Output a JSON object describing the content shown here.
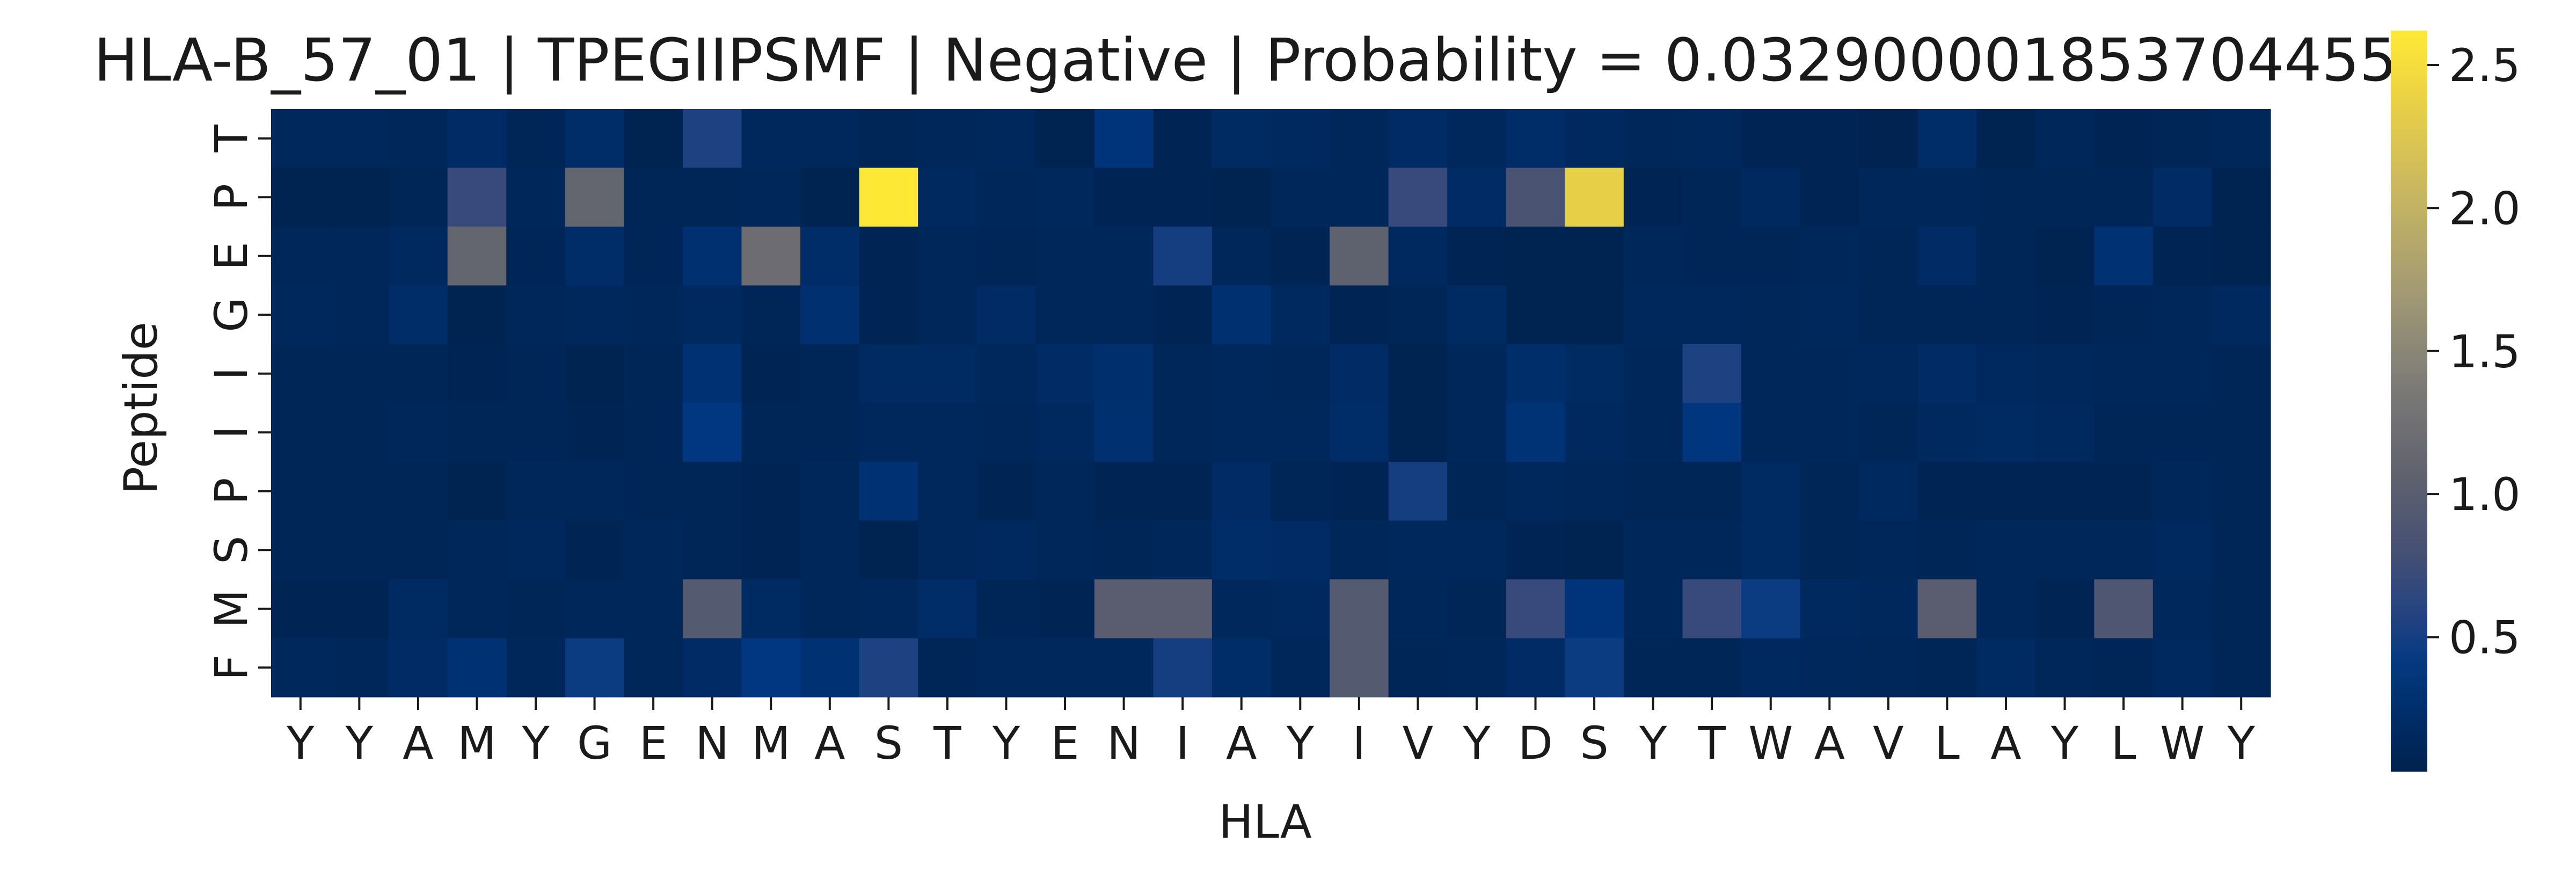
{
  "chart_data": {
    "type": "heatmap",
    "title": "HLA-B_57_01 | TPEGIIPSMF | Negative | Probability = 0.032900001853704455",
    "xlabel": "HLA",
    "ylabel": "Peptide",
    "x_categories": [
      "Y",
      "Y",
      "A",
      "M",
      "Y",
      "G",
      "E",
      "N",
      "M",
      "A",
      "S",
      "T",
      "Y",
      "E",
      "N",
      "I",
      "A",
      "Y",
      "I",
      "V",
      "Y",
      "D",
      "S",
      "Y",
      "T",
      "W",
      "A",
      "V",
      "L",
      "A",
      "Y",
      "L",
      "W",
      "Y"
    ],
    "y_categories": [
      "T",
      "P",
      "E",
      "G",
      "I",
      "I",
      "P",
      "S",
      "M",
      "F"
    ],
    "colormap": "cividis",
    "vmin": 0.03,
    "vmax": 2.62,
    "colorbar_ticks": [
      0.5,
      1.0,
      1.5,
      2.0,
      2.5
    ],
    "colorbar_tick_labels": [
      "0.5",
      "1.0",
      "1.5",
      "2.0",
      "2.5"
    ],
    "values": [
      [
        0.14,
        0.14,
        0.12,
        0.2,
        0.1,
        0.22,
        0.06,
        0.55,
        0.14,
        0.14,
        0.1,
        0.12,
        0.14,
        0.06,
        0.35,
        0.08,
        0.18,
        0.16,
        0.12,
        0.2,
        0.14,
        0.22,
        0.16,
        0.12,
        0.14,
        0.08,
        0.08,
        0.05,
        0.22,
        0.06,
        0.12,
        0.08,
        0.1,
        0.12
      ],
      [
        0.06,
        0.06,
        0.1,
        0.7,
        0.12,
        1.1,
        0.1,
        0.1,
        0.12,
        0.06,
        2.62,
        0.16,
        0.12,
        0.14,
        0.08,
        0.08,
        0.06,
        0.12,
        0.12,
        0.7,
        0.2,
        0.85,
        2.35,
        0.08,
        0.1,
        0.16,
        0.08,
        0.12,
        0.12,
        0.1,
        0.1,
        0.1,
        0.2,
        0.06
      ],
      [
        0.12,
        0.12,
        0.16,
        1.1,
        0.1,
        0.22,
        0.1,
        0.28,
        1.2,
        0.22,
        0.08,
        0.12,
        0.1,
        0.12,
        0.12,
        0.5,
        0.12,
        0.08,
        1.05,
        0.16,
        0.08,
        0.06,
        0.06,
        0.12,
        0.1,
        0.1,
        0.12,
        0.1,
        0.2,
        0.1,
        0.06,
        0.3,
        0.08,
        0.06
      ],
      [
        0.14,
        0.12,
        0.22,
        0.06,
        0.12,
        0.14,
        0.12,
        0.16,
        0.1,
        0.28,
        0.08,
        0.12,
        0.2,
        0.12,
        0.12,
        0.08,
        0.28,
        0.16,
        0.08,
        0.1,
        0.18,
        0.06,
        0.06,
        0.14,
        0.14,
        0.12,
        0.14,
        0.1,
        0.1,
        0.1,
        0.08,
        0.1,
        0.12,
        0.16
      ],
      [
        0.1,
        0.1,
        0.1,
        0.08,
        0.1,
        0.06,
        0.1,
        0.3,
        0.08,
        0.1,
        0.18,
        0.18,
        0.14,
        0.2,
        0.26,
        0.12,
        0.14,
        0.12,
        0.2,
        0.06,
        0.12,
        0.24,
        0.18,
        0.12,
        0.55,
        0.12,
        0.12,
        0.14,
        0.2,
        0.16,
        0.14,
        0.12,
        0.12,
        0.1
      ],
      [
        0.1,
        0.1,
        0.12,
        0.1,
        0.1,
        0.08,
        0.1,
        0.4,
        0.1,
        0.1,
        0.14,
        0.14,
        0.12,
        0.16,
        0.28,
        0.12,
        0.14,
        0.14,
        0.22,
        0.06,
        0.12,
        0.32,
        0.16,
        0.12,
        0.38,
        0.12,
        0.12,
        0.1,
        0.16,
        0.18,
        0.16,
        0.1,
        0.1,
        0.1
      ],
      [
        0.1,
        0.1,
        0.1,
        0.06,
        0.12,
        0.12,
        0.1,
        0.1,
        0.08,
        0.12,
        0.3,
        0.14,
        0.08,
        0.12,
        0.08,
        0.08,
        0.2,
        0.1,
        0.08,
        0.5,
        0.1,
        0.14,
        0.12,
        0.1,
        0.1,
        0.18,
        0.1,
        0.16,
        0.08,
        0.08,
        0.08,
        0.08,
        0.12,
        0.1
      ],
      [
        0.1,
        0.1,
        0.1,
        0.12,
        0.14,
        0.08,
        0.12,
        0.1,
        0.08,
        0.12,
        0.06,
        0.14,
        0.16,
        0.12,
        0.1,
        0.12,
        0.22,
        0.2,
        0.12,
        0.14,
        0.14,
        0.08,
        0.06,
        0.12,
        0.12,
        0.18,
        0.1,
        0.12,
        0.1,
        0.12,
        0.12,
        0.12,
        0.16,
        0.1
      ],
      [
        0.08,
        0.08,
        0.18,
        0.12,
        0.1,
        0.12,
        0.12,
        0.95,
        0.18,
        0.12,
        0.14,
        0.22,
        0.1,
        0.08,
        1.0,
        1.0,
        0.14,
        0.16,
        0.95,
        0.12,
        0.1,
        0.7,
        0.35,
        0.12,
        0.7,
        0.45,
        0.16,
        0.14,
        1.0,
        0.12,
        0.08,
        0.9,
        0.14,
        0.1
      ],
      [
        0.14,
        0.12,
        0.2,
        0.3,
        0.12,
        0.45,
        0.12,
        0.2,
        0.4,
        0.3,
        0.55,
        0.1,
        0.14,
        0.14,
        0.14,
        0.5,
        0.22,
        0.12,
        0.95,
        0.1,
        0.12,
        0.2,
        0.45,
        0.1,
        0.1,
        0.16,
        0.14,
        0.12,
        0.1,
        0.18,
        0.12,
        0.1,
        0.16,
        0.1
      ]
    ]
  }
}
